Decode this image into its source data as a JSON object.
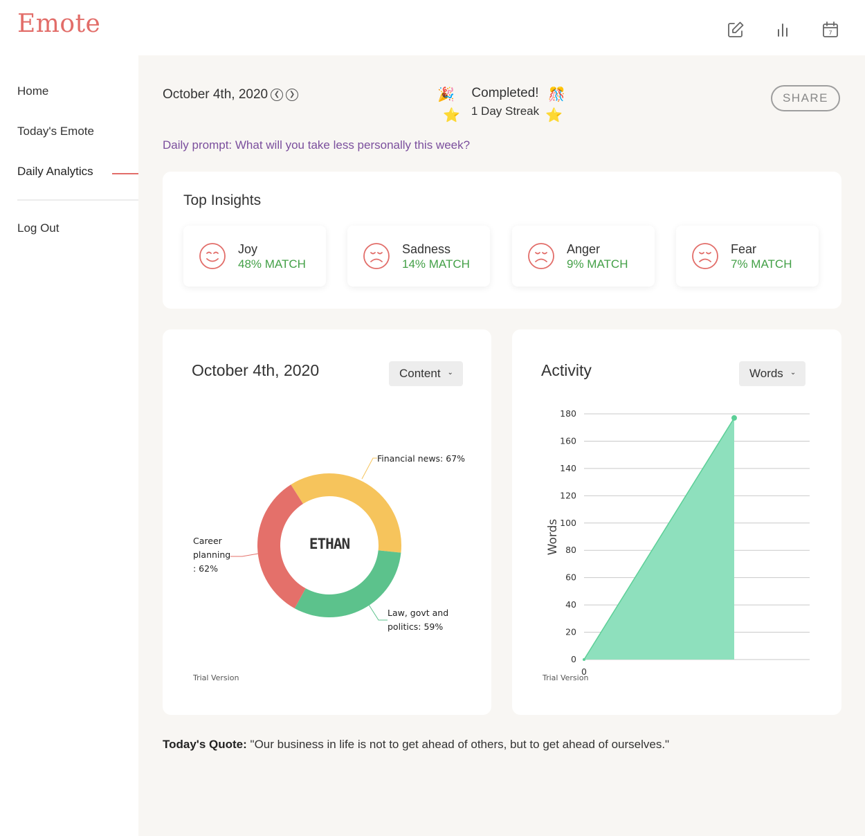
{
  "app": {
    "name": "Emote"
  },
  "topbar": {
    "icons": [
      "edit-icon",
      "bar-chart-icon",
      "calendar-icon"
    ],
    "calendar_day": "7"
  },
  "sidebar": {
    "items": [
      {
        "label": "Home"
      },
      {
        "label": "Today's Emote"
      },
      {
        "label": "Daily Analytics"
      },
      {
        "label": "Log Out"
      }
    ],
    "active_index": 2
  },
  "header": {
    "date": "October 4th, 2020",
    "completed": "Completed!",
    "streak": "1 Day Streak",
    "share_label": "SHARE"
  },
  "prompt": {
    "text": "Daily prompt: What will you take less personally this week?"
  },
  "insights": {
    "title": "Top Insights",
    "items": [
      {
        "name": "Joy",
        "match": "48% MATCH",
        "face": "happy-face-icon"
      },
      {
        "name": "Sadness",
        "match": "14% MATCH",
        "face": "sad-face-icon"
      },
      {
        "name": "Anger",
        "match": "9% MATCH",
        "face": "sad-face-icon"
      },
      {
        "name": "Fear",
        "match": "7% MATCH",
        "face": "sad-face-icon"
      }
    ]
  },
  "content_card": {
    "title": "October 4th, 2020",
    "dropdown": "Content",
    "trial": "Trial Version"
  },
  "activity_card": {
    "title": "Activity",
    "dropdown": "Words",
    "trial": "Trial Version"
  },
  "quote": {
    "label": "Today's Quote:",
    "text": "\"Our business in life is not to get ahead of others, but to get ahead of ourselves.\""
  },
  "colors": {
    "brand": "#e26d69",
    "prompt": "#7b4f9d",
    "match": "#43a047",
    "donut_yellow": "#f6c45c",
    "donut_green": "#5cc28c",
    "donut_red": "#e4706a",
    "area": "#8ee0bd",
    "area_line": "#5ccf97"
  },
  "chart_data": [
    {
      "type": "pie",
      "title": "October 4th, 2020",
      "center_label": "ETHAN",
      "slices": [
        {
          "label": "Financial news",
          "value": 67,
          "display": "Financial news: 67%",
          "color": "#f6c45c"
        },
        {
          "label": "Law, govt and politics",
          "value": 59,
          "display_lines": [
            "Law, govt and",
            "politics: 59%"
          ],
          "color": "#5cc28c"
        },
        {
          "label": "Career planning",
          "value": 62,
          "display_lines": [
            "Career",
            "planning",
            ": 62%"
          ],
          "color": "#e4706a"
        }
      ]
    },
    {
      "type": "area",
      "title": "Activity",
      "ylabel": "Words",
      "x": [
        0,
        1
      ],
      "values": [
        0,
        177
      ],
      "x_tick_labels": [
        "0"
      ],
      "ylim": [
        0,
        180
      ],
      "yticks": [
        0,
        20,
        40,
        60,
        80,
        100,
        120,
        140,
        160,
        180
      ],
      "grid": true
    }
  ]
}
